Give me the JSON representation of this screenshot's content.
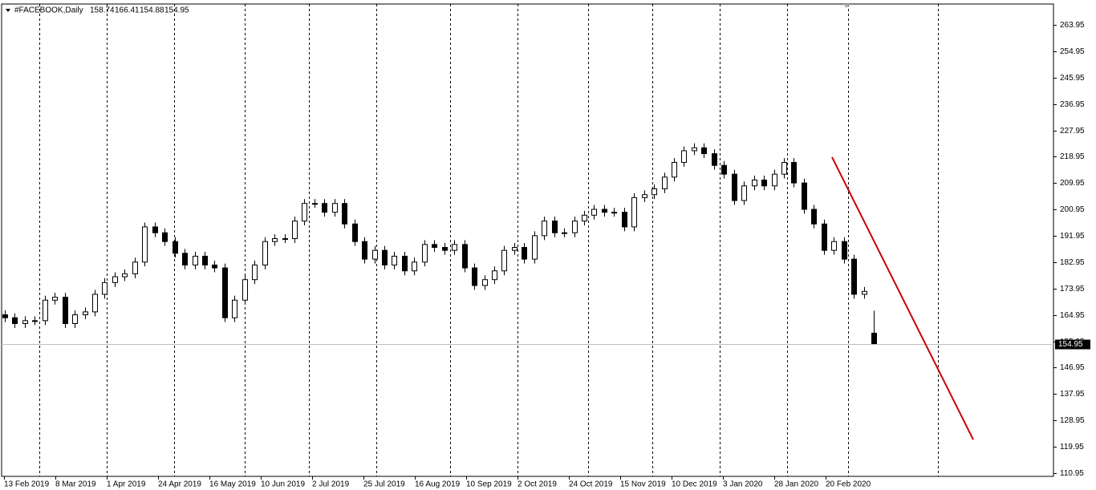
{
  "chart_data": {
    "type": "candlestick",
    "title": "#FACEBOOK,Daily",
    "ylim": [
      109.86,
      271.07
    ],
    "yticks": [
      263.95,
      254.95,
      245.95,
      236.95,
      227.95,
      218.95,
      209.95,
      200.95,
      191.95,
      182.95,
      173.95,
      164.95,
      155.95,
      146.95,
      137.95,
      128.95,
      119.95,
      110.95
    ],
    "xlabels": [
      "13 Feb 2019",
      "8 Mar 2019",
      "1 Apr 2019",
      "24 Apr 2019",
      "16 May 2019",
      "10 Jun 2019",
      "2 Jul 2019",
      "25 Jul 2019",
      "16 Aug 2019",
      "10 Sep 2019",
      "2 Oct 2019",
      "24 Oct 2019",
      "15 Nov 2019",
      "10 Dec 2019",
      "3 Jan 2020",
      "28 Jan 2020",
      "20 Feb 2020"
    ],
    "up_color": "#ffffff",
    "down_color": "#000000",
    "candles": [
      [
        165,
        166.5,
        162.5,
        164
      ],
      [
        164,
        165.5,
        160.5,
        162
      ],
      [
        162,
        164.5,
        160.5,
        163
      ],
      [
        163,
        164.5,
        161.5,
        163
      ],
      [
        163,
        171.5,
        161.5,
        170
      ],
      [
        170,
        172.5,
        168.5,
        171
      ],
      [
        171,
        172.5,
        160.5,
        162
      ],
      [
        162,
        166.5,
        160.5,
        165
      ],
      [
        165,
        167.5,
        163.5,
        166
      ],
      [
        166,
        173.5,
        164.5,
        172
      ],
      [
        172,
        177.5,
        170.5,
        176
      ],
      [
        176,
        179.5,
        174.5,
        178
      ],
      [
        178,
        180.5,
        176.5,
        179
      ],
      [
        179,
        184.5,
        177.5,
        183
      ],
      [
        183,
        196.5,
        181.5,
        195
      ],
      [
        195,
        196.5,
        191.5,
        193
      ],
      [
        193,
        194.5,
        188.5,
        190
      ],
      [
        190,
        191.5,
        184.5,
        186
      ],
      [
        186,
        187.5,
        180.5,
        182
      ],
      [
        182,
        186.5,
        180.5,
        185
      ],
      [
        185,
        186.5,
        180.5,
        182
      ],
      [
        182,
        183.5,
        179.5,
        181
      ],
      [
        181,
        182.5,
        162.5,
        164
      ],
      [
        164,
        171.5,
        162.5,
        170
      ],
      [
        170,
        178.5,
        168.5,
        177
      ],
      [
        177,
        183.5,
        175.5,
        182
      ],
      [
        182,
        191.5,
        180.5,
        190
      ],
      [
        190,
        192.5,
        188.5,
        191
      ],
      [
        191,
        192.5,
        189.5,
        191
      ],
      [
        191,
        198.5,
        189.5,
        197
      ],
      [
        197,
        204.5,
        195.5,
        203
      ],
      [
        203,
        204.5,
        201.5,
        203
      ],
      [
        203,
        204.5,
        198.5,
        200
      ],
      [
        200,
        204.5,
        198.5,
        203
      ],
      [
        203,
        204.5,
        194.5,
        196
      ],
      [
        196,
        197.5,
        188.5,
        190
      ],
      [
        190,
        191.5,
        182.5,
        184
      ],
      [
        184,
        188.5,
        182.5,
        187
      ],
      [
        187,
        188.5,
        180.5,
        182
      ],
      [
        182,
        186.5,
        180.5,
        185
      ],
      [
        185,
        186.5,
        178.5,
        180
      ],
      [
        180,
        184.5,
        178.5,
        183
      ],
      [
        183,
        190.5,
        181.5,
        189
      ],
      [
        189,
        190.5,
        186.5,
        188
      ],
      [
        188,
        189.5,
        185.5,
        187
      ],
      [
        187,
        190.5,
        185.5,
        189
      ],
      [
        189,
        190.5,
        179.5,
        181
      ],
      [
        181,
        182.5,
        173.5,
        175
      ],
      [
        175,
        178.5,
        173.5,
        177
      ],
      [
        177,
        181.5,
        175.5,
        180
      ],
      [
        180,
        188.5,
        178.5,
        187
      ],
      [
        187,
        189.5,
        185.5,
        188
      ],
      [
        188,
        189.5,
        182.5,
        184
      ],
      [
        184,
        193.5,
        182.5,
        192
      ],
      [
        192,
        198.5,
        190.5,
        197
      ],
      [
        197,
        198.5,
        191.5,
        193
      ],
      [
        193,
        194.5,
        191.5,
        193
      ],
      [
        193,
        198.5,
        191.5,
        197
      ],
      [
        197,
        200.5,
        195.5,
        199
      ],
      [
        199,
        202.5,
        197.5,
        201
      ],
      [
        201,
        202.5,
        198.5,
        200
      ],
      [
        200,
        201.5,
        198.5,
        200
      ],
      [
        200,
        201.5,
        193.5,
        195
      ],
      [
        195,
        206.5,
        193.5,
        205
      ],
      [
        205,
        207.5,
        203.5,
        206
      ],
      [
        206,
        209.5,
        204.5,
        208
      ],
      [
        208,
        213.5,
        206.5,
        212
      ],
      [
        212,
        218.5,
        210.5,
        217
      ],
      [
        217,
        222.5,
        215.5,
        221
      ],
      [
        221,
        223.5,
        219.5,
        222
      ],
      [
        222,
        223.5,
        218.5,
        220
      ],
      [
        220,
        221.5,
        214.5,
        216
      ],
      [
        216,
        217.5,
        211.5,
        213
      ],
      [
        213,
        214.5,
        202.5,
        204
      ],
      [
        204,
        210.5,
        202.5,
        209
      ],
      [
        209,
        212.5,
        207.5,
        211
      ],
      [
        211,
        212.5,
        207.5,
        209
      ],
      [
        209,
        214.5,
        207.5,
        213
      ],
      [
        213,
        218.5,
        211.5,
        217
      ],
      [
        217,
        218.5,
        208.5,
        210
      ],
      [
        210,
        211.5,
        199.5,
        201
      ],
      [
        201,
        202.5,
        194.5,
        196
      ],
      [
        196,
        197.5,
        185.5,
        187
      ],
      [
        187,
        191.5,
        185.5,
        190
      ],
      [
        190,
        191.5,
        182.5,
        184
      ],
      [
        184,
        185.5,
        170.5,
        172
      ],
      [
        172,
        174.5,
        170.5,
        173
      ],
      [
        158.74,
        166.41,
        154.88,
        154.95
      ]
    ],
    "trendline": {
      "from": 218.8,
      "to": 122.4,
      "color": "#cc0000"
    }
  }
}
